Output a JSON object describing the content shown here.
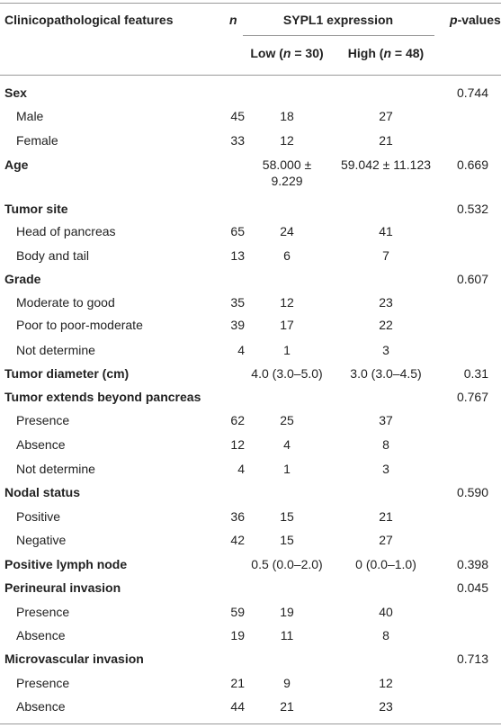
{
  "header": {
    "feature": "Clinicopathological features",
    "n": "n",
    "sypl1": "SYPL1 expression",
    "pvalue_italic": "p",
    "pvalue_rest": "-values",
    "low_pre": "Low (",
    "low_n": "n",
    "low_post": " = 30)",
    "high_pre": "High (",
    "high_n": "n",
    "high_post": " = 48)"
  },
  "rows": [
    {
      "label": "Sex",
      "bold": true,
      "p": "0.744"
    },
    {
      "label": "Male",
      "n": "45",
      "low": "18",
      "high": "27"
    },
    {
      "label": "Female",
      "n": "33",
      "low": "12",
      "high": "21"
    },
    {
      "label": "Age",
      "bold": true,
      "low": "58.000 ±",
      "low2": "9.229",
      "high": "59.042 ± 11.123",
      "p": "0.669"
    },
    {
      "label": "Tumor site",
      "bold": true,
      "p": "0.532"
    },
    {
      "label": "Head of pancreas",
      "n": "65",
      "low": "24",
      "high": "41"
    },
    {
      "label": "Body and tail",
      "n": "13",
      "low": "6",
      "high": "7"
    },
    {
      "label": "Grade",
      "bold": true,
      "p": "0.607"
    },
    {
      "label": "Moderate to good",
      "n": "35",
      "low": "12",
      "high": "23"
    },
    {
      "label": "Poor to poor-moderate",
      "n": "39",
      "low": "17",
      "high": "22"
    },
    {
      "label": "Not determine",
      "n": "4",
      "low": "1",
      "high": "3"
    },
    {
      "label": "Tumor diameter (cm)",
      "bold": true,
      "low": "4.0 (3.0–5.0)",
      "high": "3.0 (3.0–4.5)",
      "p": "0.31"
    },
    {
      "label": "Tumor extends beyond pancreas",
      "bold": true,
      "p": "0.767"
    },
    {
      "label": "Presence",
      "n": "62",
      "low": "25",
      "high": "37"
    },
    {
      "label": "Absence",
      "n": "12",
      "low": "4",
      "high": "8"
    },
    {
      "label": "Not determine",
      "n": "4",
      "low": "1",
      "high": "3"
    },
    {
      "label": "Nodal status",
      "bold": true,
      "p": "0.590"
    },
    {
      "label": "Positive",
      "n": "36",
      "low": "15",
      "high": "21"
    },
    {
      "label": "Negative",
      "n": "42",
      "low": "15",
      "high": "27"
    },
    {
      "label": "Positive lymph node",
      "bold": true,
      "low": "0.5 (0.0–2.0)",
      "high": "0 (0.0–1.0)",
      "p": "0.398"
    },
    {
      "label": "Perineural invasion",
      "bold": true,
      "p": "0.045"
    },
    {
      "label": "Presence",
      "n": "59",
      "low": "19",
      "high": "40"
    },
    {
      "label": "Absence",
      "n": "19",
      "low": "11",
      "high": "8"
    },
    {
      "label": "Microvascular invasion",
      "bold": true,
      "p": "0.713"
    },
    {
      "label": "Presence",
      "n": "21",
      "low": "9",
      "high": "12"
    },
    {
      "label": "Absence",
      "n": "44",
      "low": "21",
      "high": "23"
    }
  ]
}
